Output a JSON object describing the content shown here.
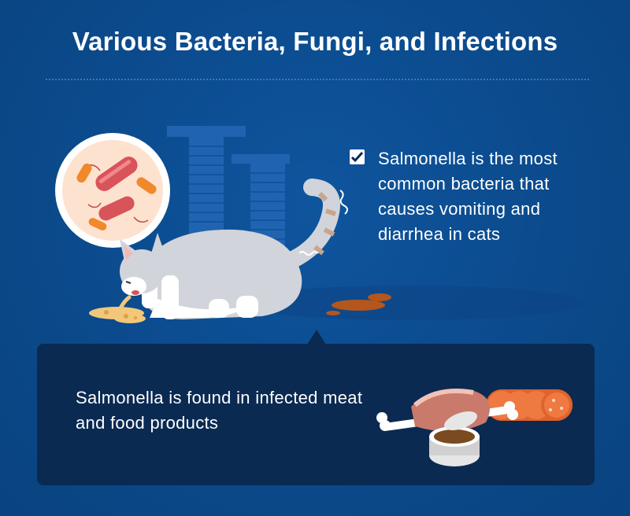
{
  "header": {
    "title": "Various Bacteria, Fungi, and Infections"
  },
  "fact": {
    "checked": true,
    "text": "Salmonella is the most common bacteria that causes vomiting and diarrhea in cats",
    "icon": "checkbox-icon"
  },
  "panel": {
    "text": "Salmonella is found in infected meat and food products"
  },
  "illustrations": {
    "bacteria": "bacteria-magnifier-icon",
    "cat": "cat-illustration",
    "food": "meat-and-food-illustration"
  },
  "colors": {
    "background": "#0b4a8c",
    "panel": "#0a2a52",
    "bacteria_red": "#d8545a",
    "bacteria_orange": "#f0892b",
    "sausage": "#e0632c"
  }
}
